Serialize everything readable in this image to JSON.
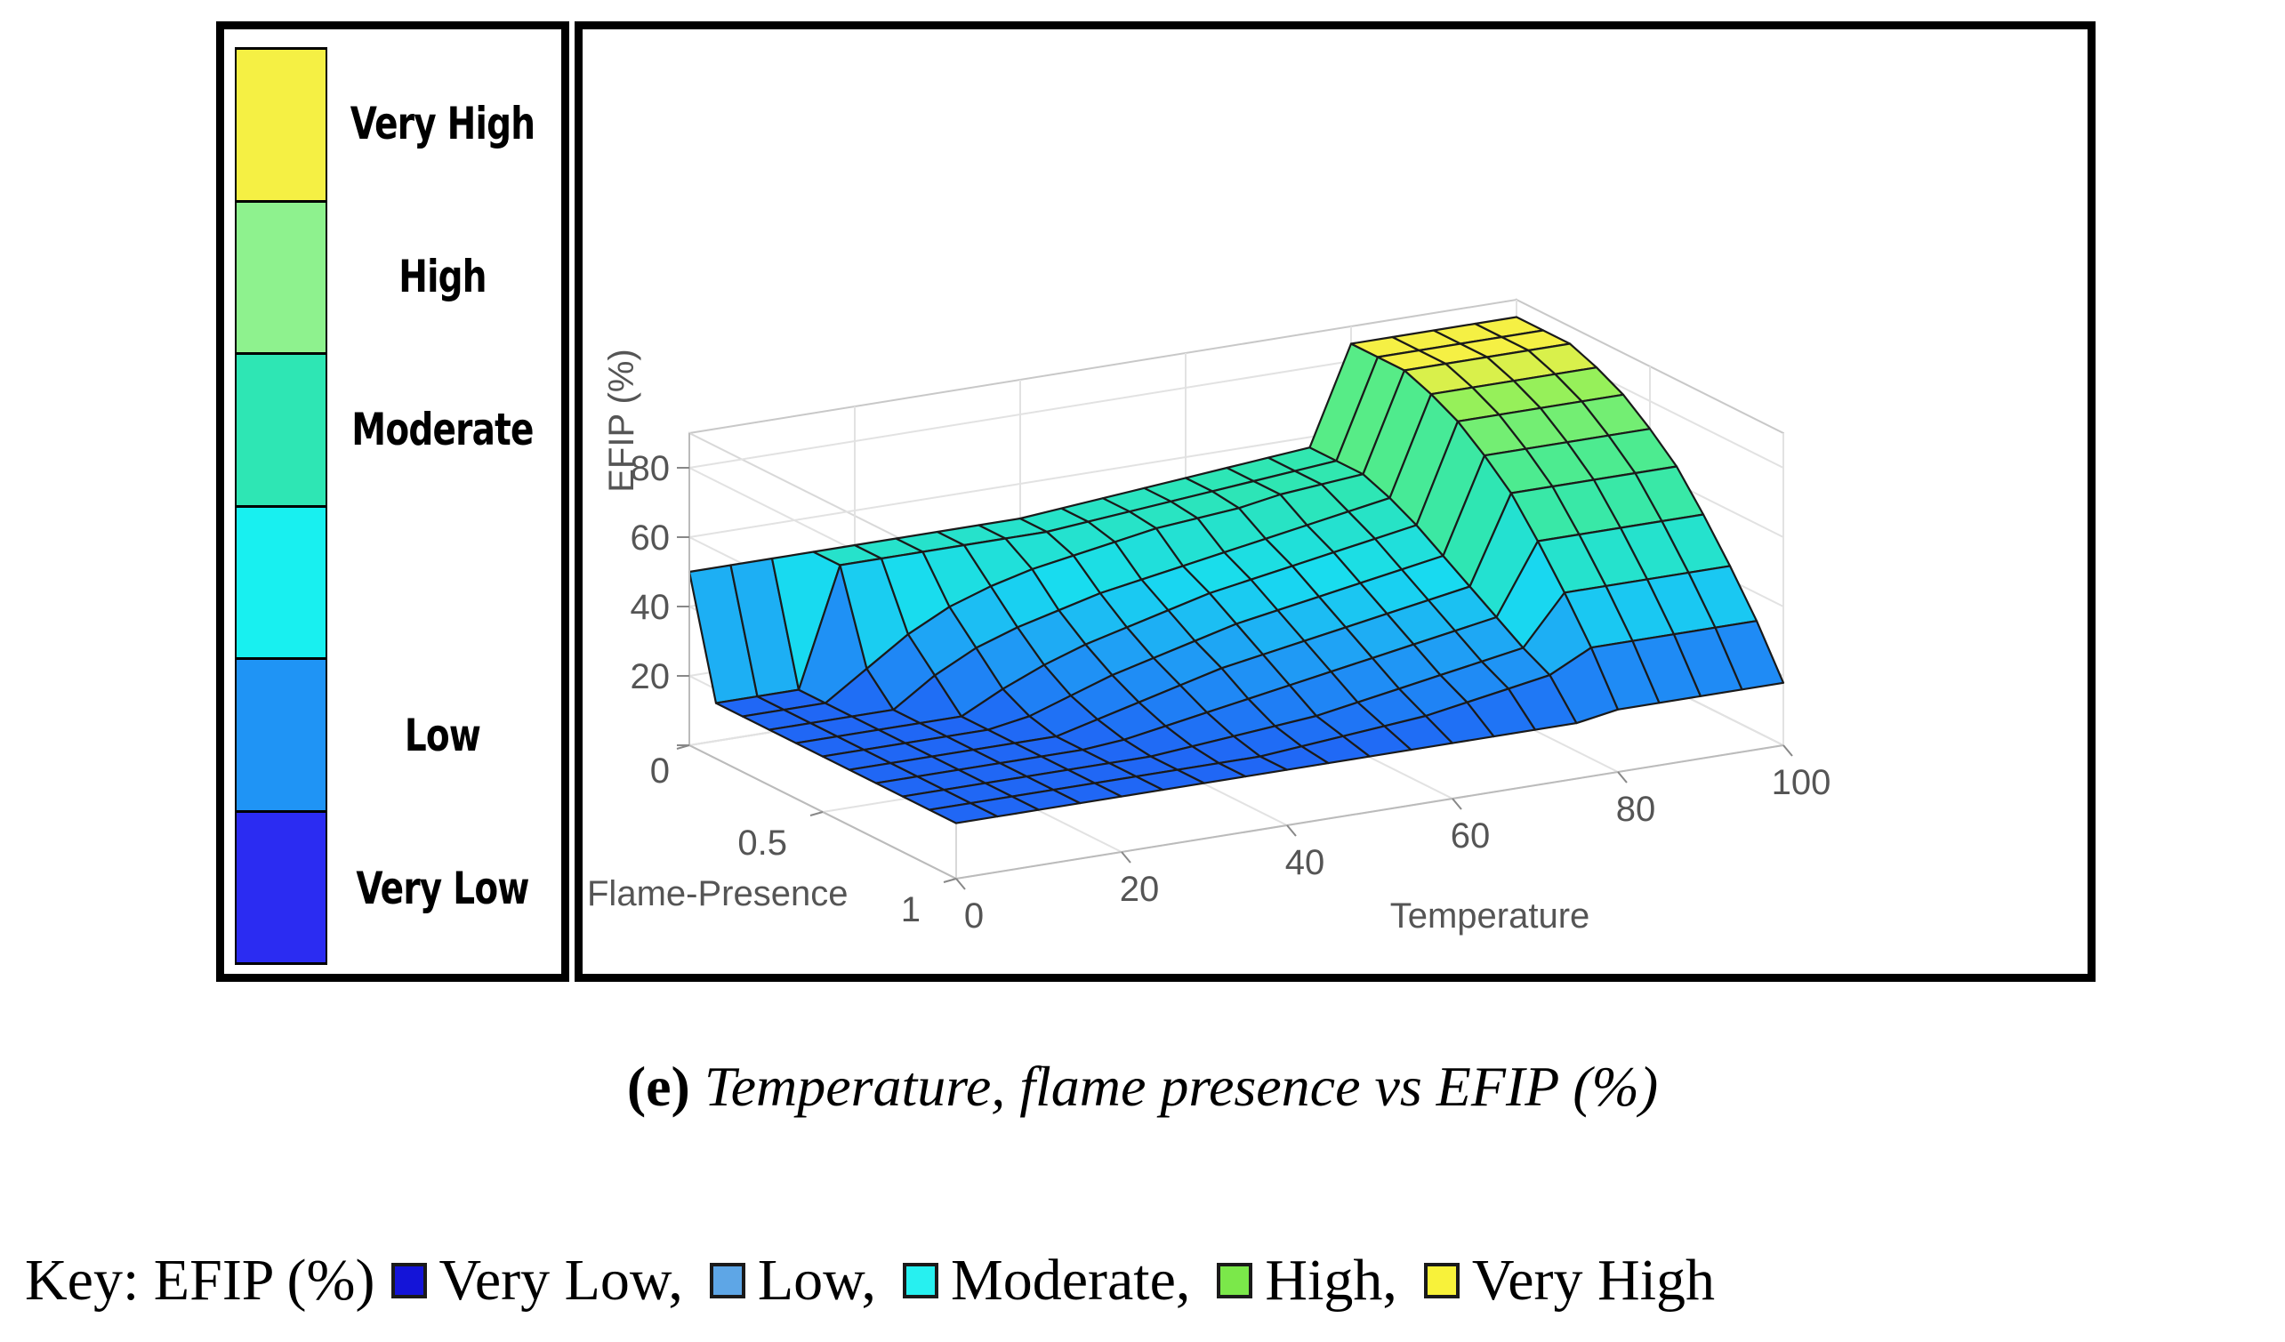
{
  "legend": {
    "items": [
      {
        "label": "Very High",
        "color": "#f5f044"
      },
      {
        "label": "High",
        "color": "#8ef28e"
      },
      {
        "label": "Moderate",
        "color": "#2ee6b4"
      },
      {
        "label": "",
        "color": "#18f0f0"
      },
      {
        "label": "Low",
        "color": "#1f94f5"
      },
      {
        "label": "Very Low",
        "color": "#2b2cf2"
      }
    ]
  },
  "chart_data": {
    "type": "surface",
    "title": "",
    "xlabel": "Temperature",
    "ylabel": "Flame-Presence",
    "zlabel": "EFIP (%)",
    "x_ticks": [
      "0",
      "20",
      "40",
      "60",
      "80",
      "100"
    ],
    "y_ticks": [
      "0",
      "0.5",
      "1"
    ],
    "z_ticks": [
      "0",
      "20",
      "40",
      "60",
      "80"
    ],
    "xlim": [
      0,
      100
    ],
    "ylim": [
      0,
      1
    ],
    "zlim": [
      0,
      90
    ],
    "grid": true,
    "temperature_values": [
      0,
      5,
      10,
      15,
      20,
      25,
      30,
      35,
      40,
      45,
      50,
      55,
      60,
      65,
      70,
      75,
      80,
      85,
      90,
      95,
      100
    ],
    "surface_rows": [
      {
        "flame_presence": 0.0,
        "efip": [
          50,
          50,
          50,
          50,
          50,
          50,
          50,
          50,
          50,
          51,
          52,
          53,
          54,
          55,
          56,
          57,
          85,
          85,
          85,
          85,
          85
        ]
      },
      {
        "flame_presence": 0.1,
        "efip": [
          16,
          16,
          16,
          50,
          50,
          50,
          50,
          50,
          50,
          51,
          52,
          53,
          54,
          55,
          56,
          57,
          85,
          85,
          85,
          85,
          85
        ]
      },
      {
        "flame_presence": 0.2,
        "efip": [
          16,
          16,
          16,
          24,
          32,
          38,
          42,
          45,
          47,
          49,
          51,
          52,
          53,
          55,
          56,
          57,
          85,
          85,
          85,
          85,
          85
        ]
      },
      {
        "flame_presence": 0.3,
        "efip": [
          16,
          16,
          16,
          16,
          24,
          30,
          34,
          37,
          40,
          42,
          44,
          46,
          48,
          50,
          52,
          54,
          82,
          82,
          82,
          82,
          82
        ]
      },
      {
        "flame_presence": 0.4,
        "efip": [
          16,
          16,
          16,
          16,
          16,
          22,
          27,
          31,
          34,
          37,
          40,
          42,
          44,
          46,
          48,
          50,
          78,
          78,
          78,
          78,
          78
        ]
      },
      {
        "flame_presence": 0.5,
        "efip": [
          16,
          16,
          16,
          16,
          16,
          18,
          22,
          26,
          29,
          32,
          35,
          37,
          39,
          41,
          43,
          45,
          72,
          72,
          72,
          72,
          72
        ]
      },
      {
        "flame_presence": 0.6,
        "efip": [
          16,
          16,
          16,
          16,
          16,
          16,
          19,
          22,
          25,
          28,
          30,
          32,
          34,
          36,
          38,
          40,
          65,
          65,
          65,
          65,
          65
        ]
      },
      {
        "flame_presence": 0.7,
        "efip": [
          16,
          16,
          16,
          16,
          16,
          16,
          17,
          19,
          21,
          23,
          25,
          27,
          29,
          31,
          33,
          35,
          55,
          55,
          55,
          55,
          55
        ]
      },
      {
        "flame_presence": 0.8,
        "efip": [
          16,
          16,
          16,
          16,
          16,
          16,
          16,
          17,
          18,
          19,
          20,
          22,
          24,
          26,
          28,
          30,
          44,
          44,
          44,
          44,
          44
        ]
      },
      {
        "flame_presence": 0.9,
        "efip": [
          16,
          16,
          16,
          16,
          16,
          16,
          16,
          16,
          16,
          17,
          18,
          19,
          20,
          22,
          24,
          26,
          32,
          32,
          32,
          32,
          32
        ]
      },
      {
        "flame_presence": 1.0,
        "efip": [
          16,
          16,
          16,
          16,
          16,
          16,
          16,
          16,
          16,
          16,
          16,
          16,
          16,
          16,
          16,
          16,
          18,
          18,
          18,
          18,
          18
        ]
      }
    ]
  },
  "caption": {
    "letter": "(e)",
    "text": "Temperature, flame presence vs EFIP (%)"
  },
  "key": {
    "title": "Key: EFIP (%)",
    "items": [
      {
        "label": "Very Low,",
        "color": "#1414d8"
      },
      {
        "label": "Low,",
        "color": "#5ea6e6"
      },
      {
        "label": "Moderate,",
        "color": "#27f0f0"
      },
      {
        "label": "High,",
        "color": "#7be84a"
      },
      {
        "label": "Very High",
        "color": "#f8f23a"
      }
    ]
  }
}
